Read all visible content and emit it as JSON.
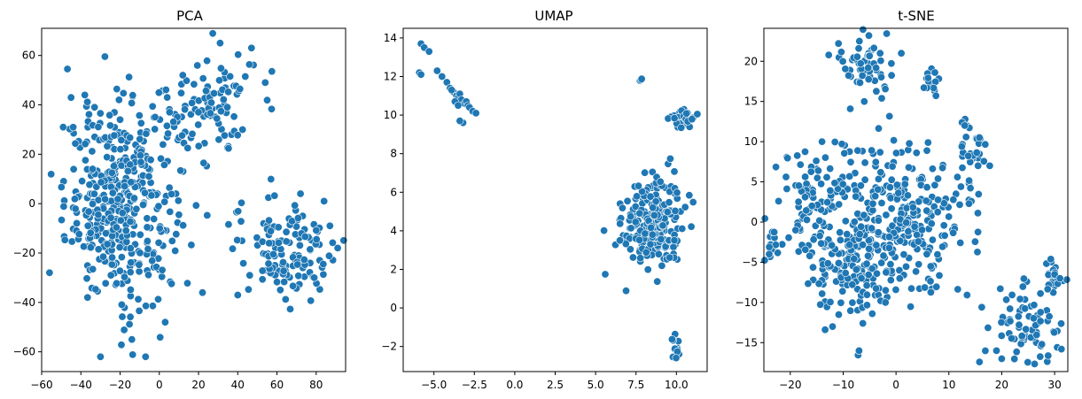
{
  "figure": {
    "background": "#ffffff",
    "point_color": "#1f77b4",
    "point_edge": "#ffffff"
  },
  "chart_data": [
    {
      "type": "scatter",
      "title": "PCA",
      "xlabel": "",
      "ylabel": "",
      "xlim": [
        -60,
        95
      ],
      "ylim": [
        -68,
        71
      ],
      "xticks": [
        -60,
        -40,
        -20,
        0,
        20,
        40,
        60,
        80
      ],
      "xtick_labels": [
        "−60",
        "−40",
        "−20",
        "0",
        "20",
        "40",
        "60",
        "80"
      ],
      "yticks": [
        -60,
        -40,
        -20,
        0,
        20,
        40,
        60
      ],
      "ytick_labels": [
        "−60",
        "−40",
        "−20",
        "0",
        "20",
        "40",
        "60"
      ],
      "grid": false,
      "clusters": [
        {
          "cx": -20,
          "cy": 0,
          "sx": 14,
          "sy": 20,
          "n": 420
        },
        {
          "cx": 25,
          "cy": 40,
          "sx": 12,
          "sy": 12,
          "n": 100
        },
        {
          "cx": 65,
          "cy": -18,
          "sx": 14,
          "sy": 10,
          "n": 130
        }
      ],
      "points": [
        [
          31,
          65
        ],
        [
          47,
          63
        ],
        [
          54,
          49
        ],
        [
          12,
          52
        ],
        [
          -30,
          -62
        ],
        [
          -7,
          -62
        ],
        [
          -49,
          31
        ],
        [
          91,
          -18
        ],
        [
          -56,
          -28
        ],
        [
          -38,
          44
        ],
        [
          -45,
          43
        ],
        [
          79,
          -30
        ],
        [
          84,
          1
        ],
        [
          40,
          -37
        ],
        [
          -33,
          39
        ],
        [
          -14,
          -55
        ],
        [
          3,
          -48
        ],
        [
          87,
          -9
        ],
        [
          -20,
          34
        ],
        [
          20,
          37
        ],
        [
          72,
          4
        ]
      ]
    },
    {
      "type": "scatter",
      "title": "UMAP",
      "xlabel": "",
      "ylabel": "",
      "xlim": [
        -6.9,
        11.9
      ],
      "ylim": [
        -3.3,
        14.5
      ],
      "xticks": [
        -5,
        -2.5,
        0,
        2.5,
        5,
        7.5,
        10
      ],
      "xtick_labels": [
        "−5.0",
        "−2.5",
        "0.0",
        "2.5",
        "5.0",
        "7.5",
        "10.0"
      ],
      "yticks": [
        -2,
        0,
        2,
        4,
        6,
        8,
        10,
        12,
        14
      ],
      "ytick_labels": [
        "−2",
        "0",
        "2",
        "4",
        "6",
        "8",
        "10",
        "12",
        "14"
      ],
      "grid": false,
      "clusters": [
        {
          "cx": 8.5,
          "cy": 4.5,
          "sx": 0.9,
          "sy": 1.2,
          "n": 260
        },
        {
          "cx": 10.3,
          "cy": 9.8,
          "sx": 0.4,
          "sy": 0.25,
          "n": 45
        },
        {
          "cx": 7.8,
          "cy": 11.8,
          "sx": 0.05,
          "sy": 0.05,
          "n": 3
        },
        {
          "cx": 10.0,
          "cy": -2.0,
          "sx": 0.1,
          "sy": 0.4,
          "n": 14
        }
      ],
      "points": [
        [
          -5.8,
          13.7
        ],
        [
          -5.6,
          13.5
        ],
        [
          -5.3,
          13.3
        ],
        [
          -5.9,
          12.2
        ],
        [
          -5.8,
          12.1
        ],
        [
          -4.8,
          12.3
        ],
        [
          -4.5,
          12.0
        ],
        [
          -4.2,
          11.7
        ],
        [
          -4.0,
          11.4
        ],
        [
          -3.8,
          11.2
        ],
        [
          -3.6,
          11.0
        ],
        [
          -3.5,
          10.9
        ],
        [
          -3.4,
          11.1
        ],
        [
          -3.3,
          10.8
        ],
        [
          -3.1,
          10.6
        ],
        [
          -3.0,
          10.7
        ],
        [
          -2.9,
          10.5
        ],
        [
          -2.8,
          10.4
        ],
        [
          -2.6,
          10.2
        ],
        [
          -2.4,
          10.1
        ],
        [
          -3.2,
          9.6
        ],
        [
          -3.4,
          9.7
        ],
        [
          -3.9,
          11.3
        ],
        [
          -3.7,
          10.7
        ],
        [
          -3.5,
          10.5
        ]
      ]
    },
    {
      "type": "scatter",
      "title": "t-SNE",
      "xlabel": "",
      "ylabel": "",
      "xlim": [
        -25,
        32.5
      ],
      "ylim": [
        -18.6,
        24.1
      ],
      "xticks": [
        -20,
        -10,
        0,
        10,
        20,
        30
      ],
      "xtick_labels": [
        "−20",
        "−10",
        "0",
        "10",
        "20",
        "30"
      ],
      "yticks": [
        -15,
        -10,
        -5,
        0,
        5,
        10,
        15,
        20
      ],
      "ytick_labels": [
        "−15",
        "−10",
        "−5",
        "0",
        "5",
        "10",
        "15",
        "20"
      ],
      "grid": false,
      "clusters": [
        {
          "cx": 0,
          "cy": 0,
          "sx": 7,
          "sy": 5,
          "n": 330
        },
        {
          "cx": -10,
          "cy": -6,
          "sx": 4,
          "sy": 3,
          "n": 110
        },
        {
          "cx": -17,
          "cy": 3,
          "sx": 3,
          "sy": 3,
          "n": 70
        },
        {
          "cx": -6,
          "cy": 19.5,
          "sx": 3,
          "sy": 2,
          "n": 55
        },
        {
          "cx": 6,
          "cy": 18,
          "sx": 1,
          "sy": 1,
          "n": 14
        },
        {
          "cx": 14,
          "cy": 8.5,
          "sx": 1.5,
          "sy": 1.8,
          "n": 30
        },
        {
          "cx": 24,
          "cy": -13,
          "sx": 3.5,
          "sy": 2.5,
          "n": 75
        },
        {
          "cx": 29.5,
          "cy": -6.5,
          "sx": 1,
          "sy": 1,
          "n": 20
        },
        {
          "cx": -23,
          "cy": -3,
          "sx": 0.8,
          "sy": 1,
          "n": 12
        }
      ],
      "points": [
        [
          -3,
          21
        ],
        [
          1,
          21
        ],
        [
          -6,
          15
        ],
        [
          -14,
          10
        ],
        [
          -19,
          -1
        ],
        [
          20,
          -17
        ],
        [
          19,
          -16
        ],
        [
          -7,
          -16
        ],
        [
          -12,
          -13
        ],
        [
          -24,
          -4
        ],
        [
          31,
          -7
        ],
        [
          13,
          12
        ],
        [
          -2,
          -10
        ]
      ]
    }
  ]
}
